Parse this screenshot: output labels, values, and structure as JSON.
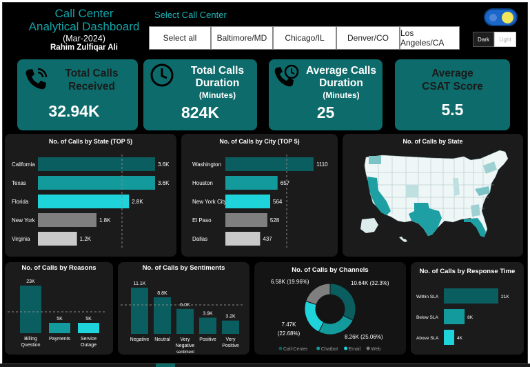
{
  "header": {
    "title_line1": "Call Center",
    "title_line2": "Analytical Dashboard",
    "month": "(Mar-2024)",
    "author": "Rahim Zulfiqar Ali"
  },
  "slicer": {
    "label": "Select Call Center",
    "options": [
      "Select all",
      "Baltimore/MD",
      "Chicago/IL",
      "Denver/CO",
      "Los Angeles/CA"
    ]
  },
  "theme_switch": {
    "dark_label": "Dark",
    "light_label": "Light"
  },
  "kpis": [
    {
      "title_lines": [
        "Total Calls",
        "Received"
      ],
      "subtitle": "",
      "value": "32.94K",
      "icon": "phone-icon"
    },
    {
      "title_lines": [
        "Total Calls",
        "Duration"
      ],
      "subtitle": "(Minutes)",
      "value": "824K",
      "icon": "clock-icon"
    },
    {
      "title_lines": [
        "Average Calls",
        "Duration"
      ],
      "subtitle": "(Minutes)",
      "value": "25",
      "icon": "phone-clock-icon"
    },
    {
      "title_lines": [
        "Average",
        "CSAT Score"
      ],
      "subtitle": "",
      "value": "5.5",
      "icon": ""
    }
  ],
  "colors": {
    "background": "#000000",
    "panel": "#1b1b1b",
    "kpi": "#0e6b6b",
    "teal_dark": "#0b5e60",
    "teal_mid": "#139a9d",
    "cyan": "#1fd3db",
    "grey": "#7f7f7f",
    "light_grey": "#c9c9c9"
  },
  "chart_data": [
    {
      "id": "calls-by-state",
      "type": "bar",
      "orientation": "horizontal",
      "title": "No. of Calls by State (TOP 5)",
      "categories": [
        "California",
        "Texas",
        "Florida",
        "New York",
        "Virginia"
      ],
      "values": [
        3600,
        3600,
        2800,
        1800,
        1200
      ],
      "labels": [
        "3.6K",
        "3.6K",
        "2.8K",
        "1.8K",
        "1.2K"
      ],
      "xlim": [
        0,
        3600
      ]
    },
    {
      "id": "calls-by-city",
      "type": "bar",
      "orientation": "horizontal",
      "title": "No. of Calls by City (TOP 5)",
      "categories": [
        "Washington",
        "Houston",
        "New York City",
        "El Paso",
        "Dallas"
      ],
      "values": [
        1110,
        657,
        564,
        528,
        437
      ],
      "labels": [
        "1110",
        "657",
        "564",
        "528",
        "437"
      ],
      "xlim": [
        0,
        1110
      ]
    },
    {
      "id": "calls-by-state-map",
      "type": "map",
      "title": "No. of Calls by State",
      "highlighted_states": [
        "California",
        "Texas",
        "Florida"
      ]
    },
    {
      "id": "calls-by-reasons",
      "type": "bar",
      "orientation": "vertical",
      "title": "No. of Calls by Reasons",
      "categories": [
        "Billing Question",
        "Payments",
        "Service Outage"
      ],
      "values": [
        23000,
        5000,
        5000
      ],
      "labels": [
        "23K",
        "5K",
        "5K"
      ],
      "ylim": [
        0,
        23000
      ]
    },
    {
      "id": "calls-by-sentiments",
      "type": "bar",
      "orientation": "vertical",
      "title": "No. of Calls by Sentiments",
      "categories": [
        "Negative",
        "Neutral",
        "Very Negative",
        "Positive",
        "Very Positive"
      ],
      "values": [
        11100,
        8800,
        6000,
        3900,
        3200
      ],
      "labels": [
        "11.1K",
        "8.8K",
        "6.0K",
        "3.9K",
        "3.2K"
      ],
      "axis_label": "sentiment",
      "ylim": [
        0,
        11100
      ]
    },
    {
      "id": "calls-by-channels",
      "type": "pie",
      "title": "No. of Calls by Channels",
      "categories": [
        "Call-Center",
        "Chatbot",
        "Email",
        "Web"
      ],
      "values": [
        10640,
        8260,
        7470,
        6580
      ],
      "labels": [
        "10.64K (32.3%)",
        "8.26K (25.06%)",
        "7.47K (22.68%)",
        "6.58K (19.96%)"
      ],
      "legend": [
        "Call-Center",
        "Chatbot",
        "Email",
        "Web"
      ],
      "legend_position": "bottom"
    },
    {
      "id": "calls-by-response-time",
      "type": "bar",
      "orientation": "horizontal",
      "title": "No. of Calls by Response Time",
      "categories": [
        "Within SLA",
        "Below SLA",
        "Above SLA"
      ],
      "values": [
        21000,
        8000,
        4000
      ],
      "labels": [
        "21K",
        "8K",
        "4K"
      ],
      "xlim": [
        0,
        21000
      ]
    }
  ]
}
